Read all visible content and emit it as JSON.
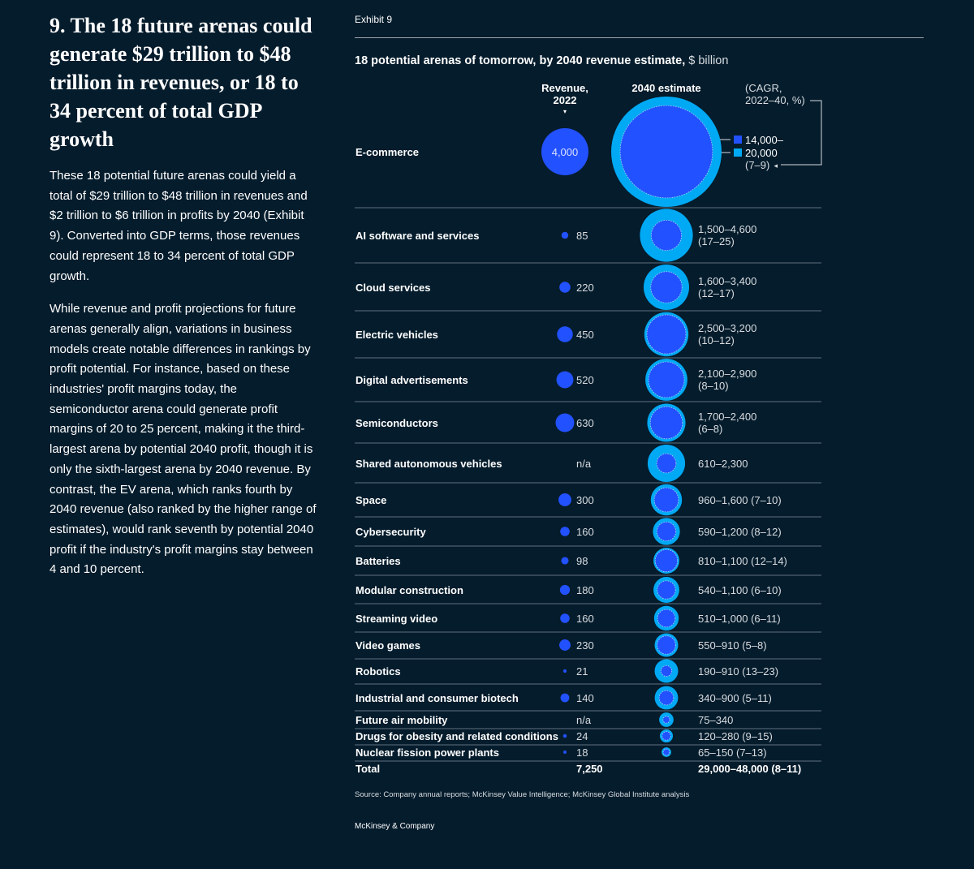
{
  "left": {
    "heading": "9. The 18 future arenas could generate $29 trillion to $48 trillion in revenues, or 18 to 34 percent of total GDP growth",
    "para1": "These 18 potential future arenas could yield a total of $29 trillion to $48 trillion in revenues and $2 trillion to $6 trillion in profits by 2040 (Exhibit 9). Converted into GDP terms, those revenues could represent 18 to 34 percent of total GDP growth.",
    "para2": "While revenue and profit projections for future arenas generally align, variations in business models create notable differences in rankings by profit potential. For instance, based on these industries' profit margins today, the semiconductor arena could generate profit margins of 20 to 25 percent, making it the third-largest arena by potential 2040 profit, though it is only the sixth-largest arena by 2040 revenue. By contrast, the EV arena, which ranks fourth by 2040 revenue (also ranked by the higher range of estimates), would rank seventh by potential 2040 profit if the industry's profit margins stay between 4 and 10 percent."
  },
  "exhibit": "Exhibit 9",
  "source": "Source: Company annual reports; McKinsey Value Intelligence; McKinsey Global Institute analysis",
  "brand": "McKinsey & Company",
  "colors": {
    "background": "#051c2c",
    "revenue_2022": "#2251ff",
    "estimate_high": "#00a9f4",
    "estimate_low": "#2251ff",
    "rule": "#5e7180"
  },
  "chart_data": {
    "type": "bubble-table",
    "title": "18 potential arenas of tomorrow, by 2040 revenue estimate,",
    "title_unit": "$ billion",
    "columns": {
      "revenue": "Revenue, 2022",
      "estimate": "2040 estimate",
      "cagr": "(CAGR, 2022–40, %)"
    },
    "legend": {
      "low": "14,000–",
      "high": "20,000",
      "cagr": "(7–9)"
    },
    "rows": [
      {
        "arena": "E-commerce",
        "revenue_2022": 4000,
        "revenue_label": "4,000",
        "low": 14000,
        "high": 20000,
        "estimate_label": "",
        "cagr_label": ""
      },
      {
        "arena": "AI software and services",
        "revenue_2022": 85,
        "revenue_label": "85",
        "low": 1500,
        "high": 4600,
        "estimate_label": "1,500–4,600",
        "cagr_label": "(17–25)"
      },
      {
        "arena": "Cloud services",
        "revenue_2022": 220,
        "revenue_label": "220",
        "low": 1600,
        "high": 3400,
        "estimate_label": "1,600–3,400",
        "cagr_label": "(12–17)"
      },
      {
        "arena": "Electric vehicles",
        "revenue_2022": 450,
        "revenue_label": "450",
        "low": 2500,
        "high": 3200,
        "estimate_label": "2,500–3,200",
        "cagr_label": "(10–12)"
      },
      {
        "arena": "Digital advertisements",
        "revenue_2022": 520,
        "revenue_label": "520",
        "low": 2100,
        "high": 2900,
        "estimate_label": "2,100–2,900",
        "cagr_label": "(8–10)"
      },
      {
        "arena": "Semiconductors",
        "revenue_2022": 630,
        "revenue_label": "630",
        "low": 1700,
        "high": 2400,
        "estimate_label": "1,700–2,400",
        "cagr_label": "(6–8)"
      },
      {
        "arena": "Shared autonomous vehicles",
        "revenue_2022": null,
        "revenue_label": "n/a",
        "low": 610,
        "high": 2300,
        "estimate_label": "610–2,300",
        "cagr_label": ""
      },
      {
        "arena": "Space",
        "revenue_2022": 300,
        "revenue_label": "300",
        "low": 960,
        "high": 1600,
        "estimate_label": "960–1,600 (7–10)",
        "cagr_label": ""
      },
      {
        "arena": "Cybersecurity",
        "revenue_2022": 160,
        "revenue_label": "160",
        "low": 590,
        "high": 1200,
        "estimate_label": "590–1,200 (8–12)",
        "cagr_label": ""
      },
      {
        "arena": "Batteries",
        "revenue_2022": 98,
        "revenue_label": "98",
        "low": 810,
        "high": 1100,
        "estimate_label": "810–1,100 (12–14)",
        "cagr_label": ""
      },
      {
        "arena": "Modular construction",
        "revenue_2022": 180,
        "revenue_label": "180",
        "low": 540,
        "high": 1100,
        "estimate_label": "540–1,100 (6–10)",
        "cagr_label": ""
      },
      {
        "arena": "Streaming video",
        "revenue_2022": 160,
        "revenue_label": "160",
        "low": 510,
        "high": 1000,
        "estimate_label": "510–1,000 (6–11)",
        "cagr_label": ""
      },
      {
        "arena": "Video games",
        "revenue_2022": 230,
        "revenue_label": "230",
        "low": 550,
        "high": 910,
        "estimate_label": "550–910 (5–8)",
        "cagr_label": ""
      },
      {
        "arena": "Robotics",
        "revenue_2022": 21,
        "revenue_label": "21",
        "low": 190,
        "high": 910,
        "estimate_label": "190–910 (13–23)",
        "cagr_label": ""
      },
      {
        "arena": "Industrial and consumer biotech",
        "revenue_2022": 140,
        "revenue_label": "140",
        "low": 340,
        "high": 900,
        "estimate_label": "340–900 (5–11)",
        "cagr_label": ""
      },
      {
        "arena": "Future air mobility",
        "revenue_2022": null,
        "revenue_label": "n/a",
        "low": 75,
        "high": 340,
        "estimate_label": "75–340",
        "cagr_label": ""
      },
      {
        "arena": "Drugs for obesity and related conditions",
        "revenue_2022": 24,
        "revenue_label": "24",
        "low": 120,
        "high": 280,
        "estimate_label": "120–280 (9–15)",
        "cagr_label": ""
      },
      {
        "arena": "Nuclear fission power plants",
        "revenue_2022": 18,
        "revenue_label": "18",
        "low": 65,
        "high": 150,
        "estimate_label": "65–150 (7–13)",
        "cagr_label": ""
      }
    ],
    "total": {
      "arena": "Total",
      "revenue_label": "7,250",
      "estimate_label": "29,000–48,000 (8–11)"
    }
  }
}
